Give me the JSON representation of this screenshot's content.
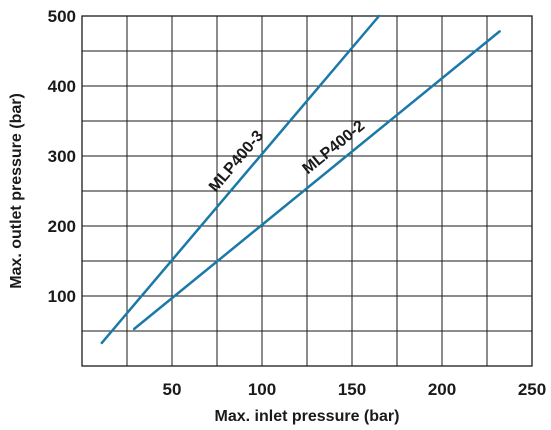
{
  "chart_data": {
    "type": "line",
    "xlabel": "Max. inlet pressure (bar)",
    "ylabel": "Max. outlet pressure (bar)",
    "xlim": [
      0,
      250
    ],
    "ylim": [
      0,
      500
    ],
    "x_ticks": [
      50,
      100,
      150,
      200,
      250
    ],
    "y_ticks": [
      100,
      200,
      300,
      400,
      500
    ],
    "grid": true,
    "colors": {
      "series": "#1b79a8",
      "grid": "#1a1a1a"
    },
    "series": [
      {
        "name": "MLP400-3",
        "x": [
          11,
          165
        ],
        "y": [
          33,
          500
        ]
      },
      {
        "name": "MLP400-2",
        "x": [
          29,
          232
        ],
        "y": [
          53,
          478
        ]
      }
    ]
  }
}
